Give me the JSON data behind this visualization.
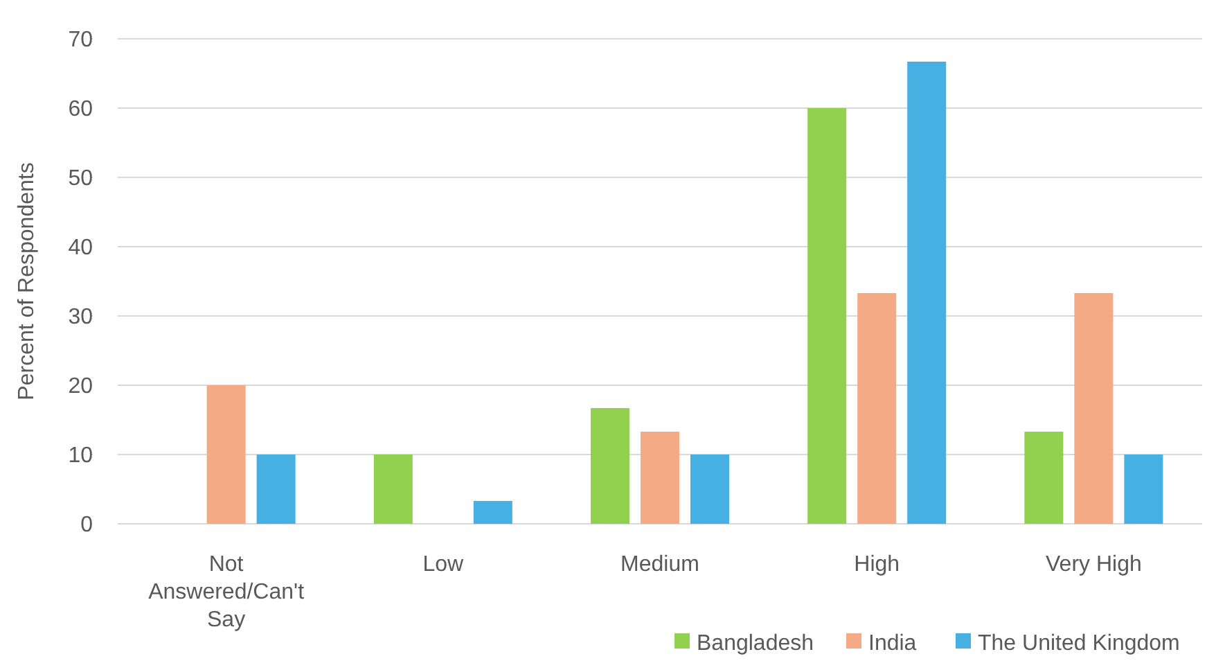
{
  "chart_data": {
    "type": "bar",
    "ylabel": "Percent of Respondents",
    "categories": [
      "Not Answered/Can't Say",
      "Low",
      "Medium",
      "High",
      "Very High"
    ],
    "series": [
      {
        "name": "Bangladesh",
        "color": "#92d050",
        "values": [
          0,
          10,
          16.7,
          60,
          13.3
        ]
      },
      {
        "name": "India",
        "color": "#f4aa84",
        "values": [
          20,
          0,
          13.3,
          33.3,
          33.3
        ]
      },
      {
        "name": "The United Kingdom",
        "color": "#45b0e1",
        "values": [
          10,
          3.3,
          10,
          66.7,
          10
        ]
      }
    ],
    "ylim": [
      0,
      70
    ],
    "yticks": [
      0,
      10,
      20,
      30,
      40,
      50,
      60,
      70
    ],
    "grid": "y",
    "legend": "bottom right"
  }
}
